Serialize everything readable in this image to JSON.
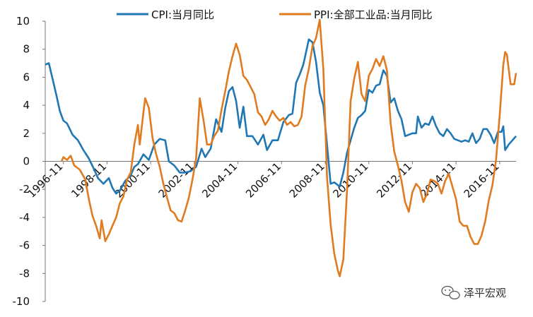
{
  "chart_data": {
    "type": "line",
    "x_start": "1996-01",
    "x_end": "2017-08",
    "xlabel": "",
    "ylabel": "",
    "ylim": [
      -10,
      10
    ],
    "y_ticks": [
      10,
      8,
      6,
      4,
      2,
      0,
      -2,
      -4,
      -6,
      -8,
      -10
    ],
    "x_tick_labels": [
      "1996-11",
      "1998-11",
      "2000-11",
      "2002-11",
      "2004-11",
      "2006-11",
      "2008-11",
      "2010-11",
      "2012-11",
      "2014-11",
      "2016-11"
    ],
    "x_ticks": [
      "1996-11",
      "1998-11",
      "2000-11",
      "2002-11",
      "2004-11",
      "2006-11",
      "2008-11",
      "2010-11",
      "2012-11",
      "2014-11",
      "2016-11"
    ],
    "grid": false,
    "legend_position": "top",
    "series": [
      {
        "name": "CPI:当月同比",
        "color": "#1f77b4",
        "points": [
          [
            "1996-01",
            6.9
          ],
          [
            "1996-03",
            7.0
          ],
          [
            "1996-05",
            5.9
          ],
          [
            "1996-07",
            4.8
          ],
          [
            "1996-09",
            3.6
          ],
          [
            "1996-11",
            2.9
          ],
          [
            "1997-01",
            2.7
          ],
          [
            "1997-04",
            1.9
          ],
          [
            "1997-07",
            1.5
          ],
          [
            "1997-10",
            0.8
          ],
          [
            "1998-01",
            0.2
          ],
          [
            "1998-04",
            -0.6
          ],
          [
            "1998-06",
            -1.2
          ],
          [
            "1998-09",
            -1.6
          ],
          [
            "1998-12",
            -1.2
          ],
          [
            "1999-02",
            -1.9
          ],
          [
            "1999-04",
            -2.3
          ],
          [
            "1999-06",
            -2.1
          ],
          [
            "1999-09",
            -1.4
          ],
          [
            "1999-12",
            -1.0
          ],
          [
            "2000-02",
            -0.4
          ],
          [
            "2000-04",
            -0.2
          ],
          [
            "2000-07",
            0.5
          ],
          [
            "2000-10",
            0.1
          ],
          [
            "2001-01",
            1.2
          ],
          [
            "2001-04",
            1.6
          ],
          [
            "2001-07",
            1.5
          ],
          [
            "2001-09",
            0.0
          ],
          [
            "2001-12",
            -0.3
          ],
          [
            "2002-03",
            -0.8
          ],
          [
            "2002-06",
            -0.8
          ],
          [
            "2002-09",
            -0.7
          ],
          [
            "2002-12",
            -0.4
          ],
          [
            "2003-03",
            0.9
          ],
          [
            "2003-05",
            0.3
          ],
          [
            "2003-08",
            0.9
          ],
          [
            "2003-11",
            3.0
          ],
          [
            "2004-02",
            2.1
          ],
          [
            "2004-04",
            3.8
          ],
          [
            "2004-06",
            5.0
          ],
          [
            "2004-08",
            5.3
          ],
          [
            "2004-10",
            4.3
          ],
          [
            "2004-12",
            2.4
          ],
          [
            "2005-02",
            3.9
          ],
          [
            "2005-04",
            1.8
          ],
          [
            "2005-07",
            1.8
          ],
          [
            "2005-10",
            1.2
          ],
          [
            "2006-01",
            1.9
          ],
          [
            "2006-03",
            0.8
          ],
          [
            "2006-06",
            1.5
          ],
          [
            "2006-09",
            1.5
          ],
          [
            "2006-12",
            2.8
          ],
          [
            "2007-03",
            3.3
          ],
          [
            "2007-05",
            3.4
          ],
          [
            "2007-07",
            5.6
          ],
          [
            "2007-09",
            6.2
          ],
          [
            "2007-11",
            6.9
          ],
          [
            "2008-02",
            8.7
          ],
          [
            "2008-04",
            8.5
          ],
          [
            "2008-06",
            7.1
          ],
          [
            "2008-08",
            4.9
          ],
          [
            "2008-10",
            4.0
          ],
          [
            "2008-12",
            1.2
          ],
          [
            "2009-02",
            -1.6
          ],
          [
            "2009-04",
            -1.5
          ],
          [
            "2009-07",
            -1.8
          ],
          [
            "2009-09",
            -0.8
          ],
          [
            "2009-11",
            0.6
          ],
          [
            "2010-01",
            1.5
          ],
          [
            "2010-03",
            2.4
          ],
          [
            "2010-05",
            3.1
          ],
          [
            "2010-07",
            3.3
          ],
          [
            "2010-09",
            3.6
          ],
          [
            "2010-11",
            5.1
          ],
          [
            "2011-01",
            4.9
          ],
          [
            "2011-03",
            5.4
          ],
          [
            "2011-05",
            5.5
          ],
          [
            "2011-07",
            6.5
          ],
          [
            "2011-09",
            6.1
          ],
          [
            "2011-11",
            4.2
          ],
          [
            "2012-01",
            4.5
          ],
          [
            "2012-03",
            3.6
          ],
          [
            "2012-05",
            3.0
          ],
          [
            "2012-07",
            1.8
          ],
          [
            "2012-09",
            1.9
          ],
          [
            "2012-11",
            2.0
          ],
          [
            "2013-01",
            2.0
          ],
          [
            "2013-02",
            3.2
          ],
          [
            "2013-04",
            2.4
          ],
          [
            "2013-06",
            2.7
          ],
          [
            "2013-08",
            2.6
          ],
          [
            "2013-10",
            3.2
          ],
          [
            "2013-12",
            2.5
          ],
          [
            "2014-02",
            2.0
          ],
          [
            "2014-04",
            1.8
          ],
          [
            "2014-06",
            2.3
          ],
          [
            "2014-08",
            2.0
          ],
          [
            "2014-10",
            1.6
          ],
          [
            "2014-12",
            1.5
          ],
          [
            "2015-02",
            1.4
          ],
          [
            "2015-04",
            1.5
          ],
          [
            "2015-06",
            1.4
          ],
          [
            "2015-08",
            2.0
          ],
          [
            "2015-10",
            1.3
          ],
          [
            "2015-12",
            1.6
          ],
          [
            "2016-02",
            2.3
          ],
          [
            "2016-04",
            2.3
          ],
          [
            "2016-06",
            1.9
          ],
          [
            "2016-08",
            1.3
          ],
          [
            "2016-10",
            2.1
          ],
          [
            "2016-12",
            2.1
          ],
          [
            "2017-01",
            2.5
          ],
          [
            "2017-02",
            0.8
          ],
          [
            "2017-04",
            1.2
          ],
          [
            "2017-06",
            1.5
          ],
          [
            "2017-08",
            1.8
          ]
        ]
      },
      {
        "name": "PPI:全部工业品:当月同比",
        "color": "#e07b1f",
        "points": [
          [
            "1996-10",
            0.0
          ],
          [
            "1996-11",
            0.3
          ],
          [
            "1997-01",
            0.1
          ],
          [
            "1997-03",
            0.4
          ],
          [
            "1997-05",
            -0.3
          ],
          [
            "1997-08",
            -0.6
          ],
          [
            "1997-11",
            -1.3
          ],
          [
            "1998-01",
            -2.7
          ],
          [
            "1998-03",
            -3.9
          ],
          [
            "1998-05",
            -4.6
          ],
          [
            "1998-07",
            -5.5
          ],
          [
            "1998-08",
            -4.2
          ],
          [
            "1998-10",
            -5.7
          ],
          [
            "1998-12",
            -5.2
          ],
          [
            "1999-02",
            -4.6
          ],
          [
            "1999-04",
            -4.0
          ],
          [
            "1999-06",
            -3.0
          ],
          [
            "1999-08",
            -2.5
          ],
          [
            "1999-10",
            -1.3
          ],
          [
            "1999-12",
            -0.8
          ],
          [
            "2000-02",
            1.2
          ],
          [
            "2000-04",
            2.6
          ],
          [
            "2000-05",
            1.2
          ],
          [
            "2000-07",
            3.5
          ],
          [
            "2000-08",
            4.5
          ],
          [
            "2000-10",
            3.8
          ],
          [
            "2000-12",
            1.7
          ],
          [
            "2001-02",
            0.5
          ],
          [
            "2001-04",
            -0.4
          ],
          [
            "2001-06",
            -1.6
          ],
          [
            "2001-08",
            -2.6
          ],
          [
            "2001-10",
            -3.5
          ],
          [
            "2001-12",
            -3.7
          ],
          [
            "2002-02",
            -4.2
          ],
          [
            "2002-04",
            -4.3
          ],
          [
            "2002-06",
            -3.5
          ],
          [
            "2002-08",
            -2.6
          ],
          [
            "2002-10",
            -1.3
          ],
          [
            "2002-12",
            0.2
          ],
          [
            "2003-02",
            4.5
          ],
          [
            "2003-04",
            3.0
          ],
          [
            "2003-06",
            1.2
          ],
          [
            "2003-08",
            1.2
          ],
          [
            "2003-10",
            1.8
          ],
          [
            "2003-12",
            2.2
          ],
          [
            "2004-02",
            3.7
          ],
          [
            "2004-04",
            5.0
          ],
          [
            "2004-06",
            6.4
          ],
          [
            "2004-08",
            7.5
          ],
          [
            "2004-10",
            8.4
          ],
          [
            "2004-12",
            7.6
          ],
          [
            "2005-02",
            6.1
          ],
          [
            "2005-04",
            5.8
          ],
          [
            "2005-06",
            5.3
          ],
          [
            "2005-08",
            4.8
          ],
          [
            "2005-10",
            3.5
          ],
          [
            "2005-12",
            3.2
          ],
          [
            "2006-02",
            2.6
          ],
          [
            "2006-04",
            3.0
          ],
          [
            "2006-06",
            3.6
          ],
          [
            "2006-08",
            3.2
          ],
          [
            "2006-10",
            2.9
          ],
          [
            "2006-12",
            3.1
          ],
          [
            "2007-02",
            2.6
          ],
          [
            "2007-04",
            2.8
          ],
          [
            "2007-06",
            2.5
          ],
          [
            "2007-08",
            2.6
          ],
          [
            "2007-10",
            3.2
          ],
          [
            "2007-12",
            5.4
          ],
          [
            "2008-02",
            6.6
          ],
          [
            "2008-04",
            8.2
          ],
          [
            "2008-06",
            8.8
          ],
          [
            "2008-08",
            10.1
          ],
          [
            "2008-10",
            6.6
          ],
          [
            "2008-12",
            -1.1
          ],
          [
            "2009-02",
            -4.5
          ],
          [
            "2009-04",
            -6.6
          ],
          [
            "2009-06",
            -7.8
          ],
          [
            "2009-07",
            -8.2
          ],
          [
            "2009-09",
            -7.0
          ],
          [
            "2009-11",
            -2.1
          ],
          [
            "2010-01",
            4.3
          ],
          [
            "2010-03",
            5.9
          ],
          [
            "2010-05",
            7.1
          ],
          [
            "2010-07",
            4.8
          ],
          [
            "2010-09",
            4.3
          ],
          [
            "2010-11",
            6.1
          ],
          [
            "2011-01",
            6.6
          ],
          [
            "2011-03",
            7.3
          ],
          [
            "2011-05",
            6.8
          ],
          [
            "2011-07",
            7.5
          ],
          [
            "2011-09",
            6.5
          ],
          [
            "2011-11",
            2.7
          ],
          [
            "2012-01",
            0.7
          ],
          [
            "2012-03",
            -0.3
          ],
          [
            "2012-05",
            -1.4
          ],
          [
            "2012-07",
            -2.9
          ],
          [
            "2012-09",
            -3.6
          ],
          [
            "2012-11",
            -2.2
          ],
          [
            "2013-01",
            -1.6
          ],
          [
            "2013-03",
            -1.9
          ],
          [
            "2013-05",
            -2.9
          ],
          [
            "2013-07",
            -2.3
          ],
          [
            "2013-09",
            -1.3
          ],
          [
            "2013-11",
            -1.4
          ],
          [
            "2014-01",
            -1.6
          ],
          [
            "2014-03",
            -2.3
          ],
          [
            "2014-05",
            -1.4
          ],
          [
            "2014-07",
            -0.9
          ],
          [
            "2014-09",
            -1.8
          ],
          [
            "2014-11",
            -2.7
          ],
          [
            "2015-01",
            -4.3
          ],
          [
            "2015-03",
            -4.6
          ],
          [
            "2015-05",
            -4.6
          ],
          [
            "2015-07",
            -5.4
          ],
          [
            "2015-09",
            -5.9
          ],
          [
            "2015-11",
            -5.9
          ],
          [
            "2016-01",
            -5.3
          ],
          [
            "2016-03",
            -4.3
          ],
          [
            "2016-05",
            -2.8
          ],
          [
            "2016-07",
            -1.7
          ],
          [
            "2016-09",
            0.1
          ],
          [
            "2016-11",
            3.3
          ],
          [
            "2017-01",
            6.9
          ],
          [
            "2017-02",
            7.8
          ],
          [
            "2017-03",
            7.6
          ],
          [
            "2017-05",
            5.5
          ],
          [
            "2017-07",
            5.5
          ],
          [
            "2017-08",
            6.3
          ]
        ]
      }
    ]
  },
  "watermark": {
    "text": "泽平宏观",
    "icon": "wechat-icon"
  }
}
